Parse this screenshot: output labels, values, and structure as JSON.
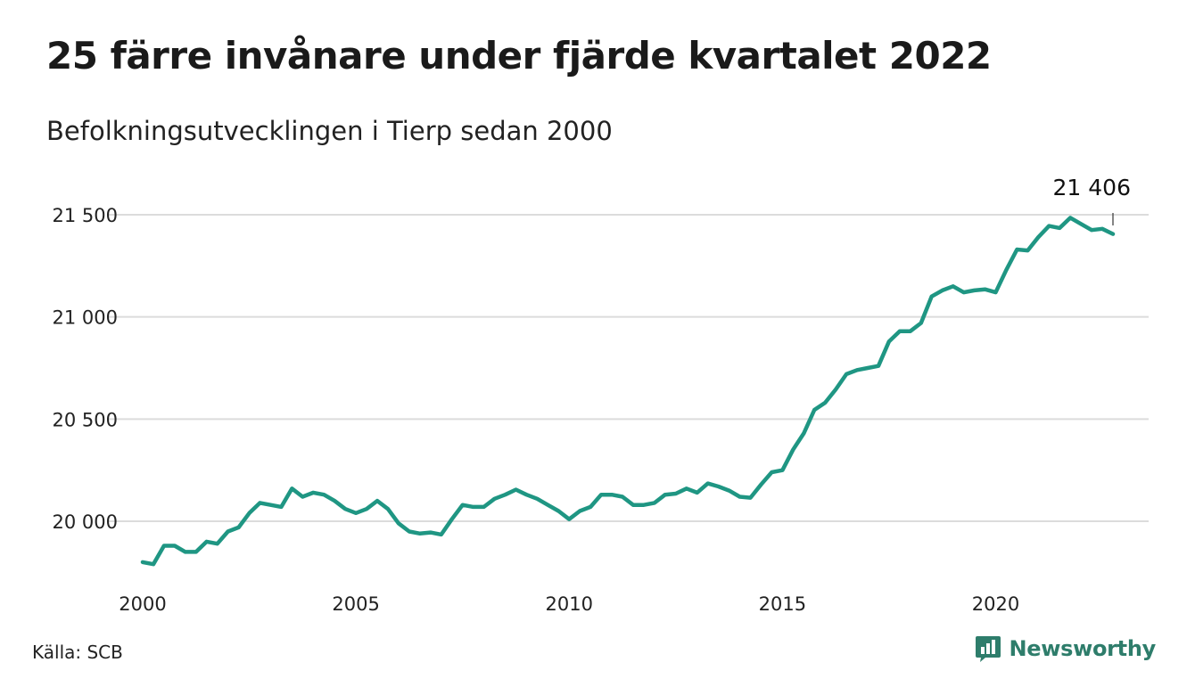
{
  "title": "25 färre invånare under fjärde kvartalet 2022",
  "subtitle": "Befolkningsutvecklingen i Tierp sedan 2000",
  "source": "Källa: SCB",
  "brand": {
    "name": "Newsworthy",
    "icon": "newsworthy-logo-icon",
    "color": "#2e7d6b"
  },
  "chart_data": {
    "type": "line",
    "x_ticks": [
      "2000",
      "2005",
      "2010",
      "2015",
      "2020"
    ],
    "y_ticks": [
      20000,
      20500,
      21000,
      21500
    ],
    "y_tick_labels": [
      "20 000",
      "20 500",
      "21 000",
      "21 500"
    ],
    "xlim": [
      2000,
      2023.5
    ],
    "ylim": [
      19750,
      21650
    ],
    "grid": "horizontal",
    "line_color": "#1f9683",
    "end_annotation": "21 406",
    "series": [
      {
        "x": [
          2000.0,
          2000.25,
          2000.5,
          2000.75,
          2001.0,
          2001.25,
          2001.5,
          2001.75,
          2002.0,
          2002.25,
          2002.5,
          2002.75,
          2003.0,
          2003.25,
          2003.5,
          2003.75,
          2004.0,
          2004.25,
          2004.5,
          2004.75,
          2005.0,
          2005.25,
          2005.5,
          2005.75,
          2006.0,
          2006.25,
          2006.5,
          2006.75,
          2007.0,
          2007.25,
          2007.5,
          2007.75,
          2008.0,
          2008.25,
          2008.5,
          2008.75,
          2009.0,
          2009.25,
          2009.5,
          2009.75,
          2010.0,
          2010.25,
          2010.5,
          2010.75,
          2011.0,
          2011.25,
          2011.5,
          2011.75,
          2012.0,
          2012.25,
          2012.5,
          2012.75,
          2013.0,
          2013.25,
          2013.5,
          2013.75,
          2014.0,
          2014.25,
          2014.5,
          2014.75,
          2015.0,
          2015.25,
          2015.5,
          2015.75,
          2016.0,
          2016.25,
          2016.5,
          2016.75,
          2017.0,
          2017.25,
          2017.5,
          2017.75,
          2018.0,
          2018.25,
          2018.5,
          2018.75,
          2019.0,
          2019.25,
          2019.5,
          2019.75,
          2020.0,
          2020.25,
          2020.5,
          2020.75,
          2021.0,
          2021.25,
          2021.5,
          2021.75,
          2022.0,
          2022.25,
          2022.5,
          2022.75
        ],
        "values": [
          19800,
          19790,
          19880,
          19880,
          19850,
          19850,
          19900,
          19890,
          19950,
          19970,
          20040,
          20090,
          20080,
          20070,
          20160,
          20120,
          20140,
          20130,
          20100,
          20060,
          20040,
          20060,
          20100,
          20060,
          19990,
          19950,
          19940,
          19945,
          19935,
          20010,
          20080,
          20070,
          20070,
          20110,
          20130,
          20155,
          20130,
          20110,
          20080,
          20050,
          20010,
          20050,
          20070,
          20130,
          20130,
          20120,
          20080,
          20080,
          20090,
          20130,
          20135,
          20160,
          20140,
          20185,
          20170,
          20150,
          20120,
          20115,
          20180,
          20240,
          20250,
          20350,
          20430,
          20545,
          20580,
          20645,
          20720,
          20740,
          20750,
          20760,
          20880,
          20930,
          20930,
          20970,
          21100,
          21130,
          21150,
          21120,
          21130,
          21135,
          21120,
          21230,
          21330,
          21325,
          21390,
          21445,
          21435,
          21485,
          21455,
          21425,
          21431,
          21406
        ]
      }
    ]
  }
}
